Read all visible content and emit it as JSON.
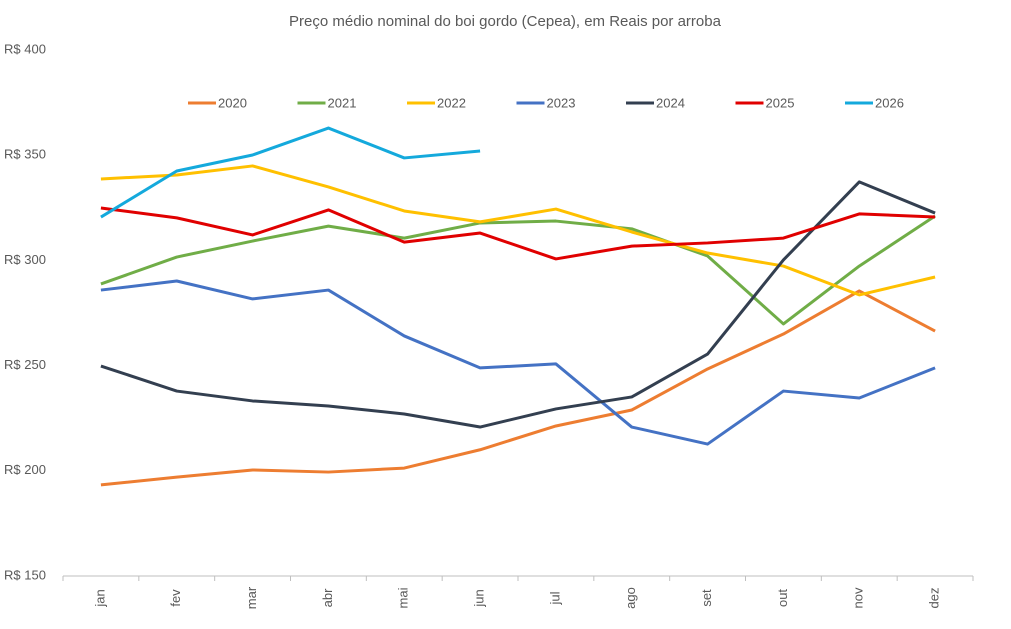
{
  "chart_data": {
    "type": "line",
    "title": "Preço médio nominal do boi gordo (Cepea), em Reais por arroba",
    "categories": [
      "jan",
      "fev",
      "mar",
      "abr",
      "mai",
      "jun",
      "jul",
      "ago",
      "set",
      "out",
      "nov",
      "dez"
    ],
    "ylim": [
      150,
      400
    ],
    "yticks": [
      {
        "value": 150,
        "label": "R$ 150"
      },
      {
        "value": 200,
        "label": "R$ 200"
      },
      {
        "value": 250,
        "label": "R$ 250"
      },
      {
        "value": 300,
        "label": "R$ 300"
      },
      {
        "value": 350,
        "label": "R$ 350"
      },
      {
        "value": 400,
        "label": "R$ 400"
      }
    ],
    "grid": false,
    "legend": "top",
    "series": [
      {
        "name": "2020",
        "color": "#ed7d31",
        "values": [
          193.3,
          197,
          200.4,
          199.4,
          201.3,
          210,
          221.3,
          228.9,
          248.4,
          265,
          285.5,
          266.4
        ]
      },
      {
        "name": "2021",
        "color": "#70ad47",
        "values": [
          288.8,
          301.6,
          309.2,
          316.3,
          310.6,
          317.8,
          318.7,
          315,
          302.1,
          269.8,
          297.3,
          321.1
        ]
      },
      {
        "name": "2022",
        "color": "#ffc000",
        "values": [
          338.7,
          340.6,
          344.9,
          334.9,
          323.5,
          318.3,
          324.4,
          313.5,
          303.5,
          297.3,
          283.6,
          292.1
        ]
      },
      {
        "name": "2023",
        "color": "#4472c4",
        "values": [
          285.9,
          290.2,
          281.7,
          285.9,
          264.1,
          248.9,
          250.8,
          220.8,
          212.7,
          237.9,
          234.6,
          248.9
        ]
      },
      {
        "name": "2024",
        "color": "#333f50",
        "values": [
          249.8,
          237.9,
          233.2,
          230.8,
          227,
          220.8,
          229.4,
          235.1,
          255.5,
          300.2,
          337.3,
          322.5
        ]
      },
      {
        "name": "2025",
        "color": "#e00000",
        "values": [
          324.9,
          320.2,
          312.1,
          324,
          308.7,
          313,
          300.7,
          306.8,
          308.3,
          310.6,
          322.1,
          320.6
        ]
      },
      {
        "name": "2026",
        "color": "#14a9dc",
        "values": [
          320.6,
          342.5,
          350.1,
          362.9,
          348.7,
          352,
          null,
          null,
          null,
          null,
          null,
          null
        ]
      }
    ]
  }
}
